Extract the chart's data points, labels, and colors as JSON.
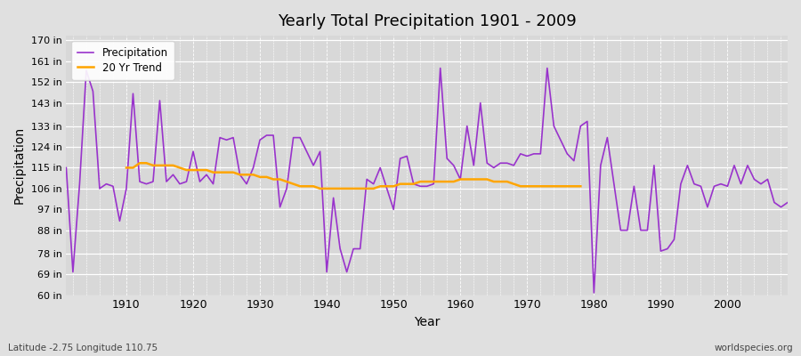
{
  "title": "Yearly Total Precipitation 1901 - 2009",
  "xlabel": "Year",
  "ylabel": "Precipitation",
  "subtitle": "Latitude -2.75 Longitude 110.75",
  "watermark": "worldspecies.org",
  "precip_color": "#9933CC",
  "trend_color": "#FFA500",
  "fig_bg_color": "#E0E0E0",
  "plot_bg_color": "#D8D8D8",
  "ylim": [
    60,
    172
  ],
  "xlim": [
    1901,
    2009
  ],
  "yticks": [
    60,
    69,
    78,
    88,
    97,
    106,
    115,
    124,
    133,
    143,
    152,
    161,
    170
  ],
  "ytick_labels": [
    "60 in",
    "69 in",
    "78 in",
    "88 in",
    "97 in",
    "106 in",
    "115 in",
    "124 in",
    "133 in",
    "143 in",
    "152 in",
    "161 in",
    "170 in"
  ],
  "xticks": [
    1910,
    1920,
    1930,
    1940,
    1950,
    1960,
    1970,
    1980,
    1990,
    2000
  ],
  "years": [
    1901,
    1902,
    1903,
    1904,
    1905,
    1906,
    1907,
    1908,
    1909,
    1910,
    1911,
    1912,
    1913,
    1914,
    1915,
    1916,
    1917,
    1918,
    1919,
    1920,
    1921,
    1922,
    1923,
    1924,
    1925,
    1926,
    1927,
    1928,
    1929,
    1930,
    1931,
    1932,
    1933,
    1934,
    1935,
    1936,
    1937,
    1938,
    1939,
    1940,
    1941,
    1942,
    1943,
    1944,
    1945,
    1946,
    1947,
    1948,
    1949,
    1950,
    1951,
    1952,
    1953,
    1954,
    1955,
    1956,
    1957,
    1958,
    1959,
    1960,
    1961,
    1962,
    1963,
    1964,
    1965,
    1966,
    1967,
    1968,
    1969,
    1970,
    1971,
    1972,
    1973,
    1974,
    1975,
    1976,
    1977,
    1978,
    1979,
    1980,
    1981,
    1982,
    1983,
    1984,
    1985,
    1986,
    1987,
    1988,
    1989,
    1990,
    1991,
    1992,
    1993,
    1994,
    1995,
    1996,
    1997,
    1998,
    1999,
    2000,
    2001,
    2002,
    2003,
    2004,
    2005,
    2006,
    2007,
    2008,
    2009
  ],
  "precip": [
    115,
    70,
    108,
    157,
    148,
    106,
    108,
    107,
    92,
    106,
    147,
    109,
    108,
    109,
    144,
    109,
    112,
    108,
    109,
    122,
    109,
    112,
    108,
    128,
    127,
    128,
    112,
    108,
    115,
    127,
    129,
    129,
    98,
    106,
    128,
    128,
    122,
    116,
    122,
    70,
    102,
    80,
    70,
    80,
    80,
    110,
    108,
    115,
    106,
    97,
    119,
    120,
    108,
    107,
    107,
    108,
    158,
    119,
    116,
    110,
    133,
    116,
    143,
    117,
    115,
    117,
    117,
    116,
    121,
    120,
    121,
    121,
    158,
    133,
    127,
    121,
    118,
    133,
    135,
    61,
    116,
    128,
    108,
    88,
    88,
    107,
    88,
    88,
    116,
    79,
    80,
    84,
    108,
    116,
    108,
    107,
    98,
    107,
    108,
    107,
    116,
    108,
    116,
    110,
    108,
    110,
    100,
    98,
    100
  ],
  "trend": [
    null,
    null,
    null,
    null,
    null,
    null,
    null,
    null,
    null,
    115,
    115,
    117,
    117,
    116,
    116,
    116,
    116,
    115,
    114,
    114,
    114,
    114,
    113,
    113,
    113,
    113,
    112,
    112,
    112,
    111,
    111,
    110,
    110,
    109,
    108,
    107,
    107,
    107,
    106,
    106,
    106,
    106,
    106,
    106,
    106,
    106,
    106,
    107,
    107,
    107,
    108,
    108,
    108,
    109,
    109,
    109,
    109,
    109,
    109,
    110,
    110,
    110,
    110,
    110,
    109,
    109,
    109,
    108,
    107,
    107,
    107,
    107,
    107,
    107,
    107,
    107,
    107,
    107,
    null,
    null,
    null,
    null,
    null,
    null,
    null,
    null,
    null,
    null,
    null,
    null,
    null,
    null,
    null,
    null,
    null,
    null,
    null,
    null,
    null,
    null,
    null,
    null,
    null,
    null,
    null,
    null,
    null
  ]
}
